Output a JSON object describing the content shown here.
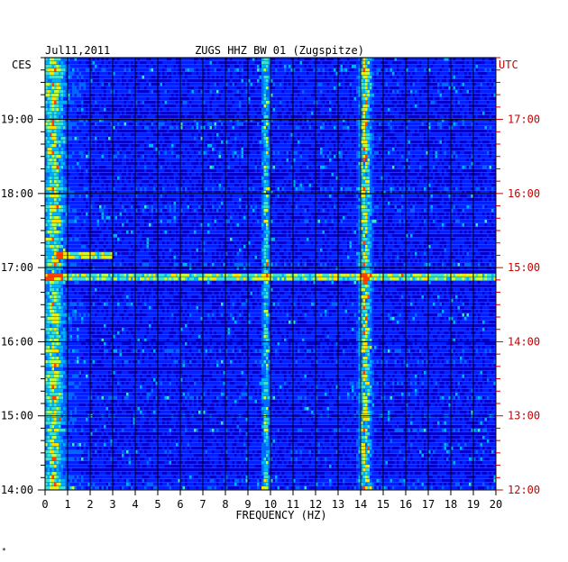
{
  "chart_data": {
    "type": "heatmap",
    "date": "Jul11,2011",
    "title": "ZUGS HHZ BW 01 (Zugspitze)",
    "left_tz": "CES",
    "right_tz": "UTC",
    "xlabel": "FREQUENCY (HZ)",
    "x_ticks": [
      "0",
      "1",
      "2",
      "3",
      "4",
      "5",
      "6",
      "7",
      "8",
      "9",
      "10",
      "11",
      "12",
      "13",
      "14",
      "15",
      "16",
      "17",
      "18",
      "19",
      "20"
    ],
    "xlim": [
      0,
      20
    ],
    "left_time_labels": [
      "19:00",
      "18:00",
      "17:00",
      "16:00",
      "15:00",
      "14:00"
    ],
    "right_time_labels": [
      "17:00",
      "16:00",
      "15:00",
      "14:00",
      "13:00",
      "12:00"
    ],
    "time_range_cest": [
      "14:00",
      "19:50"
    ],
    "colors": {
      "background_band": "#0000cc",
      "grid": "#000000",
      "left_labels": "#000000",
      "right_labels": "#cc0000",
      "palette": [
        "#00008f",
        "#0000cc",
        "#0020ff",
        "#0066ff",
        "#00b0ff",
        "#40e0d0",
        "#c0ff40",
        "#ffe000",
        "#ff4000"
      ]
    },
    "energy_bands_hz": [
      {
        "center": 0.4,
        "width": 0.6,
        "level": 0.55
      },
      {
        "center": 9.8,
        "width": 0.25,
        "level": 0.6
      },
      {
        "center": 14.2,
        "width": 0.4,
        "level": 0.75
      }
    ],
    "bright_events_cest": [
      {
        "time": "17:11",
        "freq_range": [
          0.5,
          3.0
        ]
      },
      {
        "time": "16:52",
        "freq_range": [
          0,
          20
        ]
      }
    ],
    "footnote": "*"
  }
}
